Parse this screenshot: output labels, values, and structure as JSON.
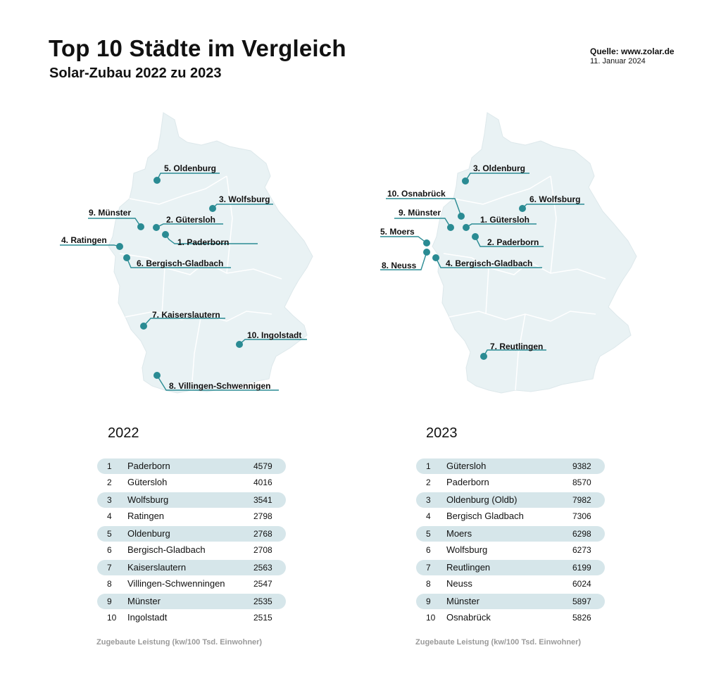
{
  "header": {
    "title": "Top 10 Städte im Vergleich",
    "subtitle": "Solar-Zubau 2022 zu 2023",
    "source": "Quelle: www.zolar.de",
    "date": "11. Januar 2024"
  },
  "colors": {
    "accent": "#2a8b93",
    "map_fill": "#e9f2f4",
    "row_shade": "#d6e6ea",
    "footnote": "#9a9a9a"
  },
  "maps": [
    {
      "year": "2022",
      "cities": [
        {
          "label": "1. Paderborn"
        },
        {
          "label": "2. Gütersloh"
        },
        {
          "label": "3. Wolfsburg"
        },
        {
          "label": "4. Ratingen"
        },
        {
          "label": "5. Oldenburg"
        },
        {
          "label": "6. Bergisch-Gladbach"
        },
        {
          "label": "7. Kaiserslautern"
        },
        {
          "label": "8. Villingen-Schwennigen"
        },
        {
          "label": "9. Münster"
        },
        {
          "label": "10. Ingolstadt"
        }
      ]
    },
    {
      "year": "2023",
      "cities": [
        {
          "label": "1. Gütersloh"
        },
        {
          "label": "2. Paderborn"
        },
        {
          "label": "3. Oldenburg"
        },
        {
          "label": "4. Bergisch-Gladbach"
        },
        {
          "label": "5. Moers"
        },
        {
          "label": "6. Wolfsburg"
        },
        {
          "label": "7. Reutlingen"
        },
        {
          "label": "8. Neuss"
        },
        {
          "label": "9. Münster"
        },
        {
          "label": "10. Osnabrück"
        }
      ]
    }
  ],
  "tables": [
    {
      "year": "2022",
      "rows": [
        {
          "rank": "1",
          "city": "Paderborn",
          "value": "4579"
        },
        {
          "rank": "2",
          "city": "Gütersloh",
          "value": "4016"
        },
        {
          "rank": "3",
          "city": "Wolfsburg",
          "value": "3541"
        },
        {
          "rank": "4",
          "city": "Ratingen",
          "value": "2798"
        },
        {
          "rank": "5",
          "city": "Oldenburg",
          "value": "2768"
        },
        {
          "rank": "6",
          "city": "Bergisch-Gladbach",
          "value": "2708"
        },
        {
          "rank": "7",
          "city": "Kaiserslautern",
          "value": "2563"
        },
        {
          "rank": "8",
          "city": "Villingen-Schwenningen",
          "value": "2547"
        },
        {
          "rank": "9",
          "city": "Münster",
          "value": "2535"
        },
        {
          "rank": "10",
          "city": "Ingolstadt",
          "value": "2515"
        }
      ],
      "footnote": "Zugebaute Leistung (kw/100 Tsd. Einwohner)"
    },
    {
      "year": "2023",
      "rows": [
        {
          "rank": "1",
          "city": "Gütersloh",
          "value": "9382"
        },
        {
          "rank": "2",
          "city": "Paderborn",
          "value": "8570"
        },
        {
          "rank": "3",
          "city": "Oldenburg (Oldb)",
          "value": "7982"
        },
        {
          "rank": "4",
          "city": "Bergisch Gladbach",
          "value": "7306"
        },
        {
          "rank": "5",
          "city": "Moers",
          "value": "6298"
        },
        {
          "rank": "6",
          "city": "Wolfsburg",
          "value": "6273"
        },
        {
          "rank": "7",
          "city": "Reutlingen",
          "value": "6199"
        },
        {
          "rank": "8",
          "city": "Neuss",
          "value": "6024"
        },
        {
          "rank": "9",
          "city": "Münster",
          "value": "5897"
        },
        {
          "rank": "10",
          "city": "Osnabrück",
          "value": "5826"
        }
      ],
      "footnote": "Zugebaute Leistung (kw/100 Tsd. Einwohner)"
    }
  ]
}
